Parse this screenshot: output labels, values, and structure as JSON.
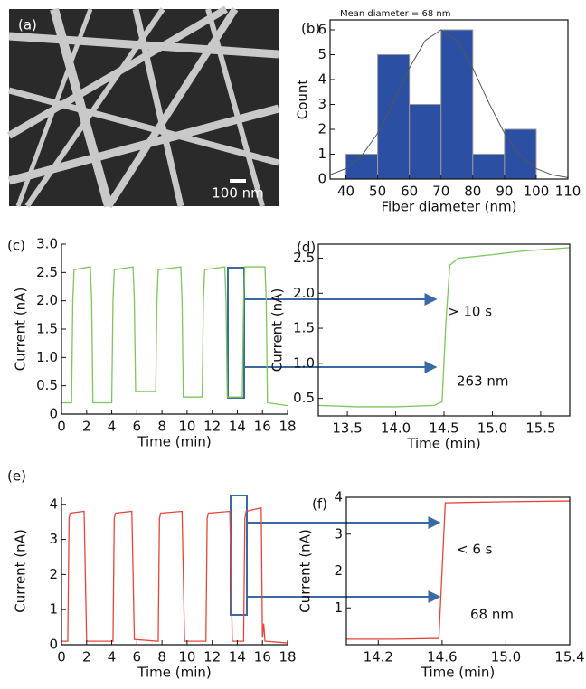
{
  "panel_a": {
    "label": "(a)",
    "scale_bar": "100 nm"
  },
  "chart_data": [
    {
      "type": "histogram",
      "label": "(b)",
      "annotation": "Mean diameter = 68 nm",
      "xlabel": "Fiber diameter (nm)",
      "ylabel": "Count",
      "bins": [
        40,
        50,
        60,
        70,
        80,
        90,
        100
      ],
      "values": [
        1,
        5,
        3,
        6,
        1,
        2
      ],
      "color": "#2b4fa3",
      "fit": {
        "x": [
          35,
          40,
          45,
          50,
          55,
          60,
          65,
          70,
          75,
          80,
          85,
          90,
          95,
          100,
          105,
          110
        ],
        "values": [
          0.17,
          0.42,
          0.94,
          1.84,
          3.08,
          4.46,
          5.57,
          6,
          5.57,
          4.46,
          3.08,
          1.84,
          0.94,
          0.42,
          0.17,
          0.06
        ]
      },
      "xlim": [
        35,
        110
      ],
      "xticks": [
        40,
        50,
        60,
        70,
        80,
        90,
        100,
        110
      ],
      "ylim": [
        0,
        6.4
      ],
      "yticks": [
        0,
        1,
        2,
        3,
        4,
        5,
        6
      ]
    },
    {
      "type": "line",
      "label": "(c)",
      "xlabel": "Time (min)",
      "ylabel": "Current (nA)",
      "color": "#7cc75a",
      "x": [
        0,
        0.8,
        0.9,
        1.0,
        2.3,
        2.4,
        2.5,
        4.0,
        4.1,
        4.2,
        5.7,
        5.8,
        5.9,
        7.5,
        7.6,
        7.7,
        9.5,
        9.6,
        9.7,
        11.2,
        11.3,
        11.4,
        13.0,
        13.1,
        13.2,
        14.4,
        14.5,
        14.6,
        16.2,
        16.3,
        16.4,
        18
      ],
      "values": [
        0.2,
        0.2,
        2.0,
        2.55,
        2.6,
        2.0,
        0.2,
        0.2,
        2.0,
        2.55,
        2.6,
        2.0,
        0.4,
        0.4,
        2.0,
        2.55,
        2.6,
        2.0,
        0.3,
        0.3,
        2.0,
        2.55,
        2.6,
        2.0,
        0.3,
        0.3,
        2.0,
        2.6,
        2.6,
        2.0,
        0.2,
        0.15
      ],
      "xlim": [
        0,
        18
      ],
      "xticks": [
        0,
        2,
        4,
        6,
        8,
        10,
        12,
        14,
        16,
        18
      ],
      "ylim": [
        0,
        3.0
      ],
      "yticks": [
        0,
        0.5,
        {
          "value": 1,
          "label": "1.0"
        },
        1.5,
        {
          "value": 2,
          "label": "2.0"
        },
        2.5,
        {
          "value": 3,
          "label": "3.0"
        }
      ]
    },
    {
      "type": "line",
      "label": "(d)",
      "xlabel": "Time (min)",
      "ylabel": "Current (nA)",
      "color": "#7cc75a",
      "annotations": [
        "> 10 s",
        "263 nm"
      ],
      "x": [
        13.2,
        13.6,
        14.0,
        14.4,
        14.48,
        14.52,
        14.56,
        14.65,
        15.0,
        15.3,
        15.8
      ],
      "values": [
        0.4,
        0.38,
        0.38,
        0.4,
        0.45,
        1.6,
        2.4,
        2.5,
        2.55,
        2.6,
        2.65
      ],
      "xlim": [
        13.2,
        15.8
      ],
      "xticks": [
        13.5,
        {
          "value": 14,
          "label": "14.0"
        },
        14.5,
        {
          "value": 15,
          "label": "15.0"
        },
        15.5
      ],
      "ylim": [
        0.25,
        2.7
      ],
      "yticks": [
        0.5,
        {
          "value": 1,
          "label": "1.0"
        },
        1.5,
        {
          "value": 2,
          "label": "2.0"
        },
        2.5
      ]
    },
    {
      "type": "line",
      "label": "(e)",
      "xlabel": "Time (min)",
      "ylabel": "Current (nA)",
      "color": "#e8443a",
      "x": [
        0,
        0.5,
        0.6,
        0.7,
        1.8,
        1.9,
        2.0,
        4.1,
        4.2,
        4.3,
        5.6,
        5.7,
        5.8,
        7.7,
        7.8,
        7.9,
        9.6,
        9.7,
        9.8,
        11.5,
        11.6,
        11.7,
        13.4,
        13.5,
        13.6,
        14.5,
        14.6,
        14.7,
        15.9,
        16.0,
        16.1,
        16.2,
        16.3,
        18
      ],
      "values": [
        0.1,
        0.1,
        3.6,
        3.75,
        3.8,
        2,
        0.1,
        0.1,
        3.6,
        3.75,
        3.8,
        2,
        0.15,
        0.1,
        3.6,
        3.75,
        3.8,
        2,
        0.1,
        0.1,
        3.6,
        3.75,
        3.8,
        2,
        0.1,
        0.1,
        3.6,
        3.8,
        3.9,
        0.2,
        0.6,
        0.1,
        0.1,
        0.05
      ],
      "xlim": [
        0,
        18
      ],
      "xticks": [
        0,
        2,
        4,
        6,
        8,
        10,
        12,
        14,
        16,
        18
      ],
      "ylim": [
        0,
        4.2
      ],
      "yticks": [
        0,
        1,
        2,
        3,
        4
      ]
    },
    {
      "type": "line",
      "label": "(f)",
      "xlabel": "Time (min)",
      "ylabel": "Current (nA)",
      "color": "#e8443a",
      "annotations": [
        "< 6 s",
        "68 nm"
      ],
      "x": [
        14.0,
        14.3,
        14.58,
        14.6,
        14.62,
        15.0,
        15.4
      ],
      "values": [
        0.15,
        0.15,
        0.17,
        2.0,
        3.85,
        3.88,
        3.9
      ],
      "xlim": [
        14.0,
        15.4
      ],
      "xticks": [
        14.2,
        14.6,
        {
          "value": 15,
          "label": "15.0"
        },
        15.4
      ],
      "ylim": [
        0,
        4
      ],
      "yticks": [
        1,
        2,
        3,
        4
      ]
    }
  ]
}
